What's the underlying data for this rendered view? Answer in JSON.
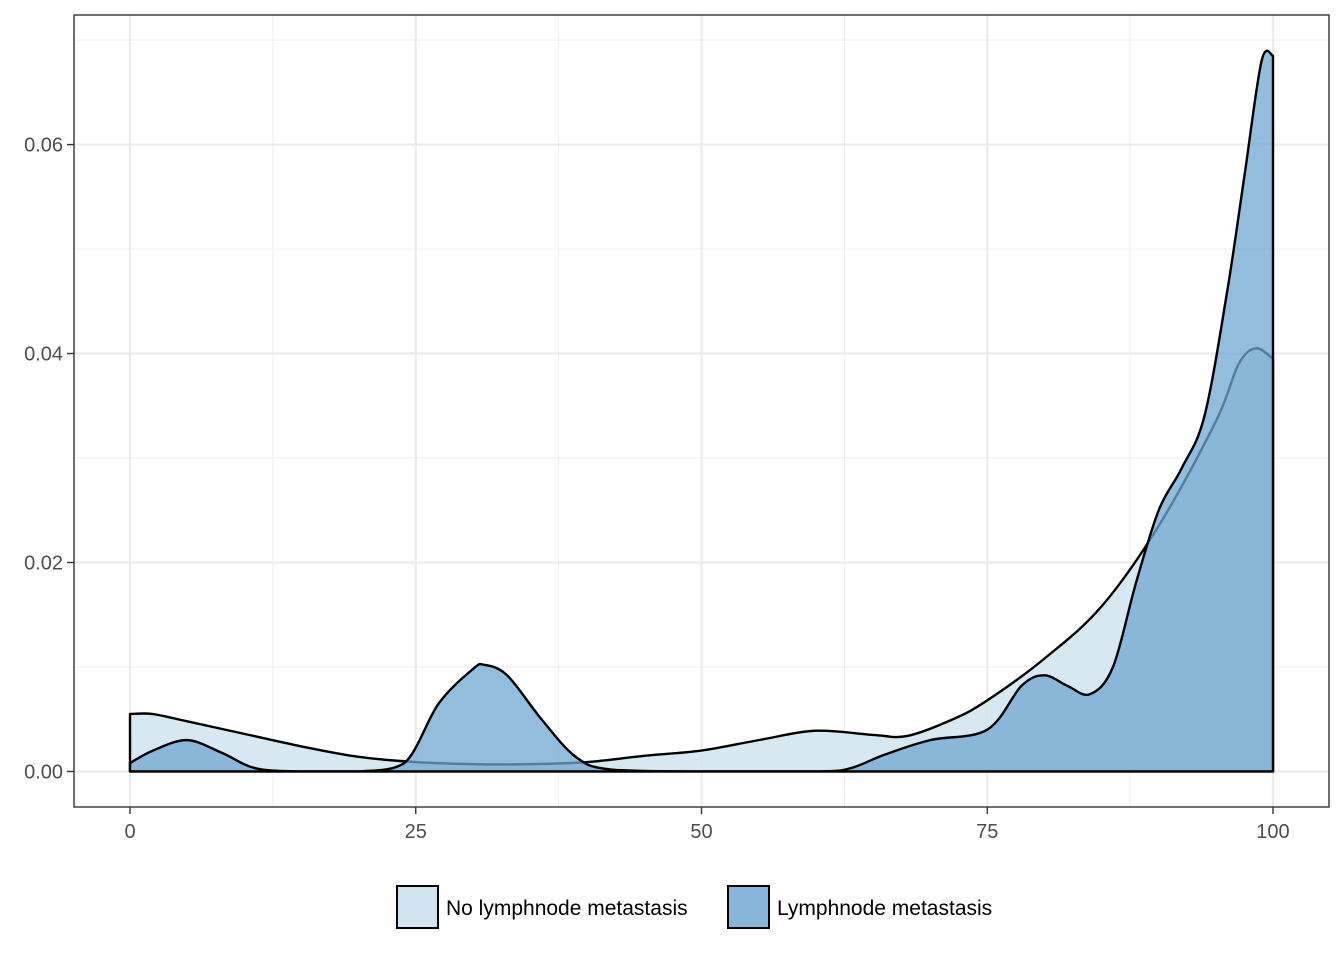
{
  "chart_data": {
    "type": "area",
    "title": "",
    "xlabel": "",
    "ylabel": "",
    "xlim": [
      -4.9,
      104.9
    ],
    "ylim": [
      -0.0034,
      0.0724
    ],
    "x_ticks": [
      0,
      25,
      50,
      75,
      100
    ],
    "x_tick_labels": [
      "0",
      "25",
      "50",
      "75",
      "100"
    ],
    "y_ticks": [
      0.0,
      0.02,
      0.04,
      0.06
    ],
    "y_tick_labels": [
      "0.00",
      "0.02",
      "0.04",
      "0.06"
    ],
    "grid": true,
    "legend_position": "bottom",
    "series": [
      {
        "name": "No lymphnode metastasis",
        "color": "#d1e5f0",
        "opacity": 0.9,
        "x": [
          0,
          2,
          5,
          10,
          15,
          20,
          25,
          30,
          35,
          40,
          45,
          50,
          55,
          60,
          65,
          68,
          72,
          75,
          80,
          85,
          90,
          95,
          97,
          98.5,
          100
        ],
        "y": [
          0.0055,
          0.0055,
          0.0048,
          0.0036,
          0.0024,
          0.0014,
          0.0009,
          0.0007,
          0.0007,
          0.0009,
          0.0015,
          0.002,
          0.003,
          0.0039,
          0.0035,
          0.0034,
          0.005,
          0.0068,
          0.0108,
          0.0158,
          0.0235,
          0.0335,
          0.039,
          0.0405,
          0.0395
        ]
      },
      {
        "name": "Lymphnode metastasis",
        "color": "#6fa7d0",
        "opacity": 0.75,
        "x": [
          0,
          2,
          5,
          8,
          11,
          15,
          20,
          24,
          27,
          30,
          31,
          33,
          36,
          39,
          42,
          50,
          60,
          63,
          66,
          70,
          75,
          78,
          80,
          82,
          84,
          86,
          88,
          90,
          92,
          94,
          96,
          97.5,
          99,
          100
        ],
        "y": [
          0.0008,
          0.002,
          0.003,
          0.0018,
          0.0003,
          0.0,
          0.0,
          0.0008,
          0.0065,
          0.0098,
          0.0102,
          0.0092,
          0.005,
          0.0014,
          0.0002,
          0.0,
          0.0,
          0.0003,
          0.0016,
          0.003,
          0.004,
          0.0082,
          0.0092,
          0.0082,
          0.0074,
          0.01,
          0.018,
          0.025,
          0.029,
          0.034,
          0.046,
          0.057,
          0.068,
          0.0685
        ]
      }
    ]
  }
}
